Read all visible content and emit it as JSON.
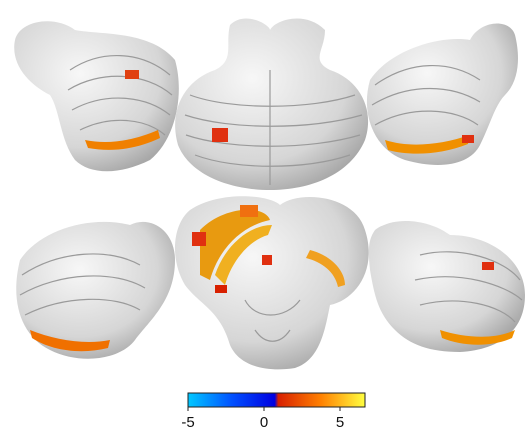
{
  "colorbar": {
    "lim": [
      -5,
      5
    ],
    "ticks": [
      -5,
      0,
      5
    ]
  }
}
